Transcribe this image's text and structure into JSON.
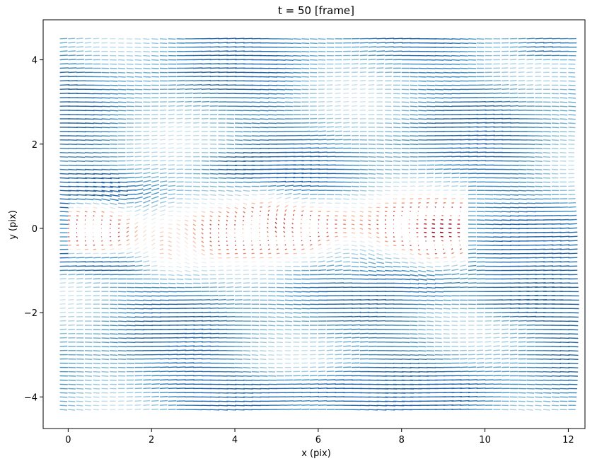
{
  "chart_data": {
    "type": "quiver",
    "title": "t = 50 [frame]",
    "xlabel": "x (pix)",
    "ylabel": "y (pix)",
    "xlim": [
      -0.6,
      12.4
    ],
    "ylim": [
      -4.75,
      4.95
    ],
    "xticks": [
      0,
      2,
      4,
      6,
      8,
      10,
      12
    ],
    "yticks": [
      -4,
      -2,
      0,
      2,
      4
    ],
    "xtick_labels": [
      "0",
      "2",
      "4",
      "6",
      "8",
      "10",
      "12"
    ],
    "ytick_labels": [
      "−4",
      "−2",
      "0",
      "2",
      "4"
    ],
    "grid": {
      "x_start": -0.2,
      "x_step": 0.2,
      "x_count": 62,
      "y_start": -4.3,
      "y_step": 0.1,
      "y_count": 89
    },
    "colormap": "RdBu",
    "flow_description": "mean flow +x; near-stagnant reversed region ~ y in [-0.6, 0.6], x in [0, 9]",
    "colors": {
      "strong_flow": "#2166ac",
      "weak_flow": "#d1e5f0",
      "neutral": "#f7f7f7",
      "reverse_flow": "#ef8a62",
      "strong_reverse": "#b2182b"
    }
  }
}
